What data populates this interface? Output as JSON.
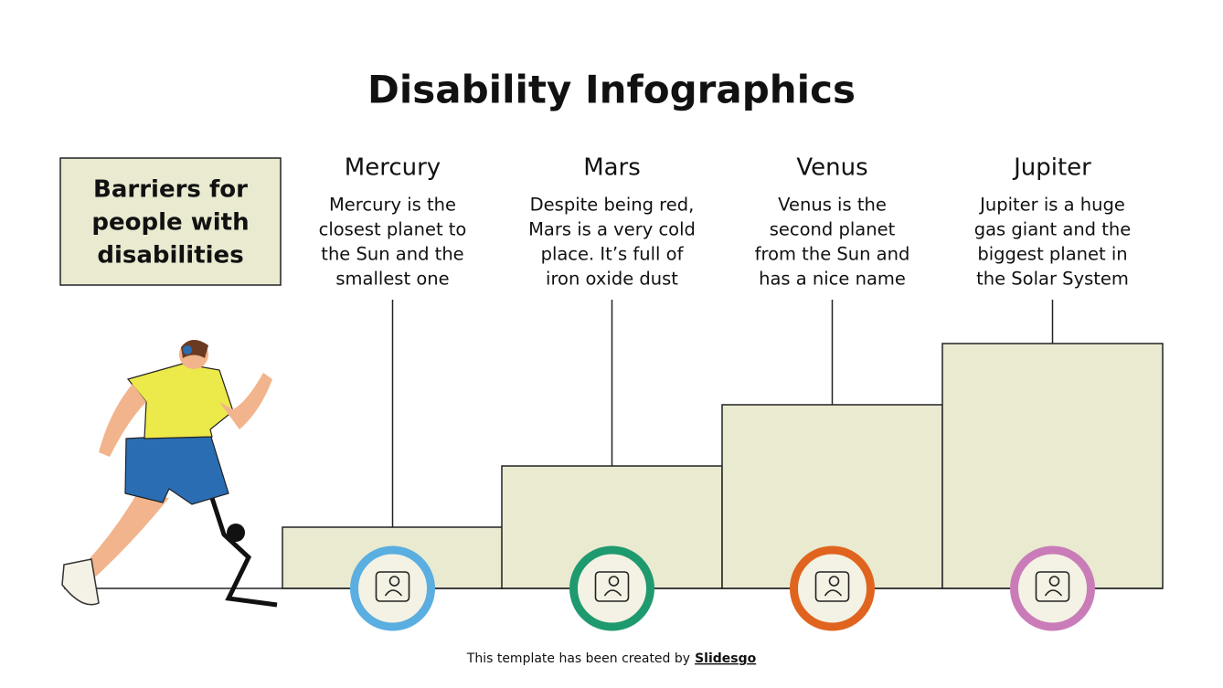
{
  "title": "Disability Infographics",
  "sidebar": {
    "lines": [
      "Barriers for",
      "people with",
      "disabilities"
    ]
  },
  "columns": [
    {
      "heading": "Mercury",
      "lines": [
        "Mercury is the",
        "closest planet to",
        "the Sun and the",
        "smallest one"
      ]
    },
    {
      "heading": "Mars",
      "lines": [
        "Despite being red,",
        "Mars is a very cold",
        "place. It’s full of",
        "iron oxide dust"
      ]
    },
    {
      "heading": "Venus",
      "lines": [
        "Venus is the",
        "second planet",
        "from the Sun and",
        "has a nice name"
      ]
    },
    {
      "heading": "Jupiter",
      "lines": [
        "Jupiter is a huge",
        "gas giant and the",
        "biggest planet in",
        "the Solar System"
      ]
    }
  ],
  "footer": {
    "text": "This template has been created by",
    "link": "Slidesgo"
  }
}
